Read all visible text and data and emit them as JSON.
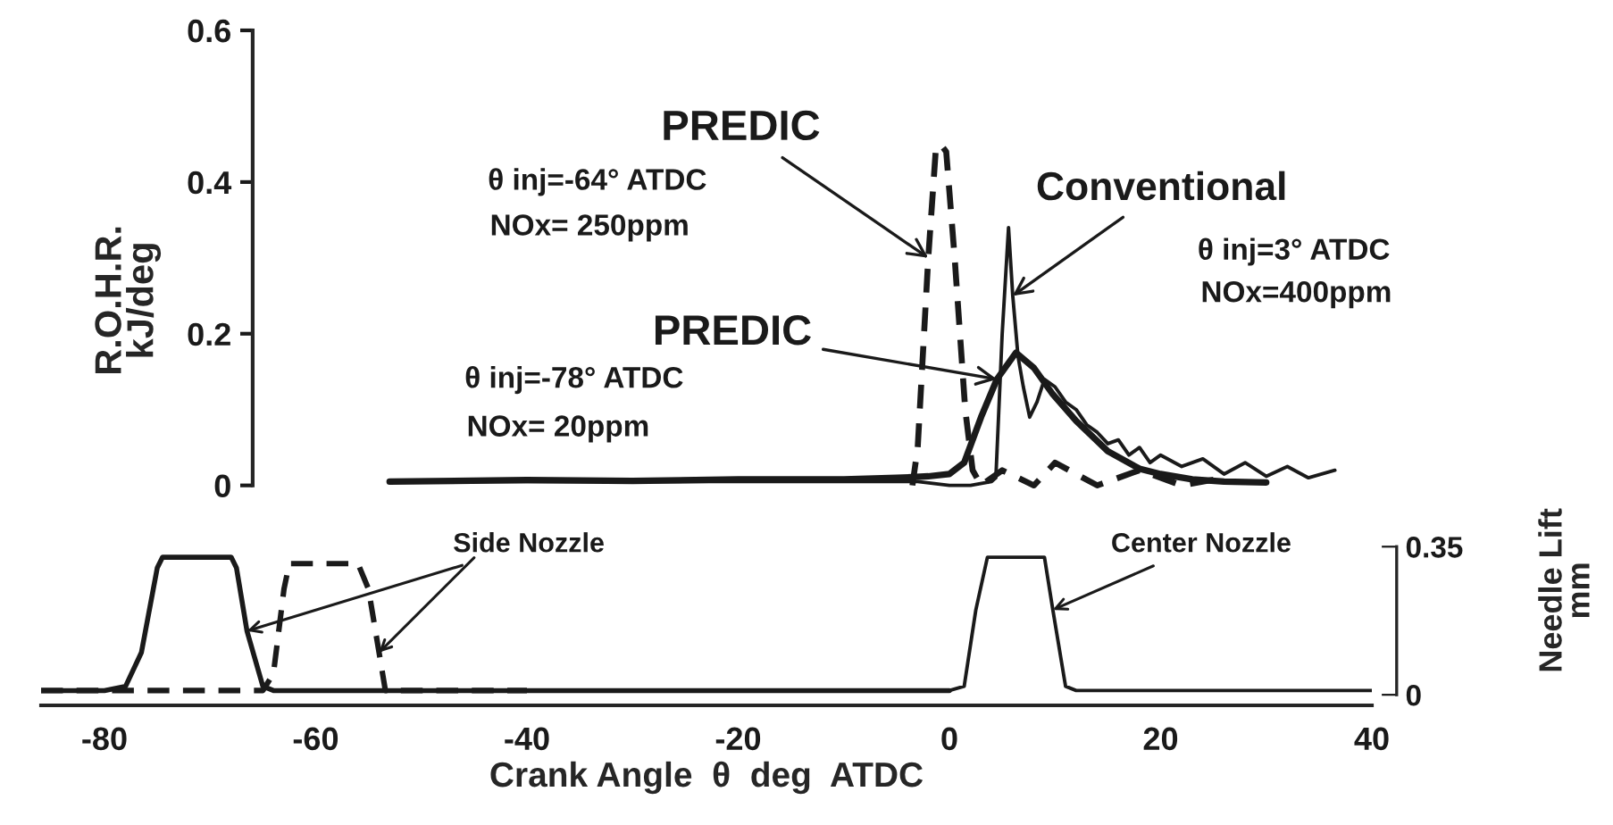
{
  "chart_data": {
    "type": "line",
    "ylabel": "R.O.H.R.\nkJ/deg",
    "xlabel": "Crank Angle  θ  deg  ATDC",
    "y2label": "Needle Lift\nmm",
    "xlim": [
      -86,
      40
    ],
    "xticks": [
      -80,
      -60,
      -40,
      -20,
      0,
      20,
      40
    ],
    "ylim": [
      -0.29,
      0.6
    ],
    "yticks": [
      0,
      0.2,
      0.4,
      0.6
    ],
    "y2lim": [
      -0.025,
      1.57
    ],
    "y2ticks": [
      0,
      0.35
    ],
    "series": [
      {
        "name": "PREDIC",
        "color": "#1a1a1a",
        "line_style": "dashed",
        "x": [
          -3.5,
          -3,
          -2,
          -1.3,
          -0.85,
          -0.3,
          0.5,
          1.5,
          2.2,
          3,
          5,
          8,
          10,
          14,
          18,
          22,
          26
        ],
        "values": [
          0.0,
          0.05,
          0.3,
          0.44,
          0.45,
          0.44,
          0.3,
          0.1,
          0.02,
          0.0,
          0.02,
          0.0,
          0.03,
          0.0,
          0.02,
          0.0,
          0.01
        ]
      },
      {
        "name": "PREDIC",
        "color": "#1a1a1a",
        "line_style": "solid",
        "x": [
          -53,
          -40,
          -30,
          -20,
          -10,
          -5,
          -2,
          0,
          1.4,
          3,
          4.5,
          6.3,
          8,
          9.8,
          12,
          15,
          18,
          20,
          23,
          26,
          30
        ],
        "values": [
          0.005,
          0.007,
          0.006,
          0.008,
          0.008,
          0.01,
          0.012,
          0.015,
          0.03,
          0.09,
          0.14,
          0.175,
          0.155,
          0.12,
          0.085,
          0.045,
          0.022,
          0.015,
          0.008,
          0.005,
          0.004
        ]
      },
      {
        "name": "Conventional",
        "color": "#1a1a1a",
        "line_style": "solid",
        "x": [
          -53,
          -45,
          -35,
          -25,
          -15,
          -8,
          -3,
          0,
          2,
          4,
          4.4,
          5.0,
          5.6,
          6.0,
          6.5,
          7.0,
          7.6,
          8.3,
          9,
          10,
          11,
          12,
          13,
          14,
          15,
          16,
          17,
          18,
          19,
          20,
          22,
          24,
          26,
          28,
          30,
          32,
          34,
          36.5
        ],
        "values": [
          0.005,
          0.005,
          0.005,
          0.005,
          0.005,
          0.005,
          0.005,
          0.0,
          0.0,
          0.005,
          0.01,
          0.2,
          0.34,
          0.25,
          0.17,
          0.13,
          0.09,
          0.11,
          0.14,
          0.13,
          0.11,
          0.1,
          0.08,
          0.07,
          0.055,
          0.06,
          0.04,
          0.05,
          0.03,
          0.04,
          0.025,
          0.035,
          0.015,
          0.03,
          0.012,
          0.025,
          0.01,
          0.02
        ]
      },
      {
        "axis": "y2",
        "color": "#1a1a1a",
        "line_style": "solid",
        "x": [
          -86,
          -80,
          -78,
          -76.5,
          -75,
          -74.5,
          -68,
          -67.5,
          -66.5,
          -65,
          -64,
          -55,
          -40,
          -20,
          0
        ],
        "values": [
          0.01,
          0.01,
          0.02,
          0.1,
          0.3,
          0.325,
          0.325,
          0.3,
          0.15,
          0.02,
          0.01,
          0.01,
          0.01,
          0.01,
          0.01
        ]
      },
      {
        "axis": "y2",
        "color": "#1a1a1a",
        "line_style": "dashed",
        "x": [
          -86,
          -70,
          -65,
          -64,
          -63,
          -62.5,
          -56,
          -55,
          -54,
          -53.4,
          -52,
          -40
        ],
        "values": [
          0.01,
          0.01,
          0.01,
          0.05,
          0.25,
          0.31,
          0.31,
          0.25,
          0.1,
          0.01,
          0.01,
          0.01
        ]
      },
      {
        "axis": "y2",
        "color": "#1a1a1a",
        "line_style": "solid",
        "x": [
          0,
          1.4,
          2.5,
          3.6,
          9,
          9.8,
          11,
          12,
          20,
          30,
          40
        ],
        "values": [
          0.01,
          0.02,
          0.2,
          0.325,
          0.325,
          0.2,
          0.02,
          0.01,
          0.01,
          0.01,
          0.01
        ]
      }
    ],
    "annotations": [
      "θ inj=-64° ATDC",
      "NOx= 250ppm",
      "θ inj=-78° ATDC",
      "NOx= 20ppm",
      "θ inj=3° ATDC",
      "NOx=400ppm",
      {
        "text": "Side Nozzle",
        "x": -66.5,
        "y": -0.192
      },
      {
        "text": "Center Nozzle",
        "x": 9.8,
        "y": -0.164
      }
    ]
  }
}
